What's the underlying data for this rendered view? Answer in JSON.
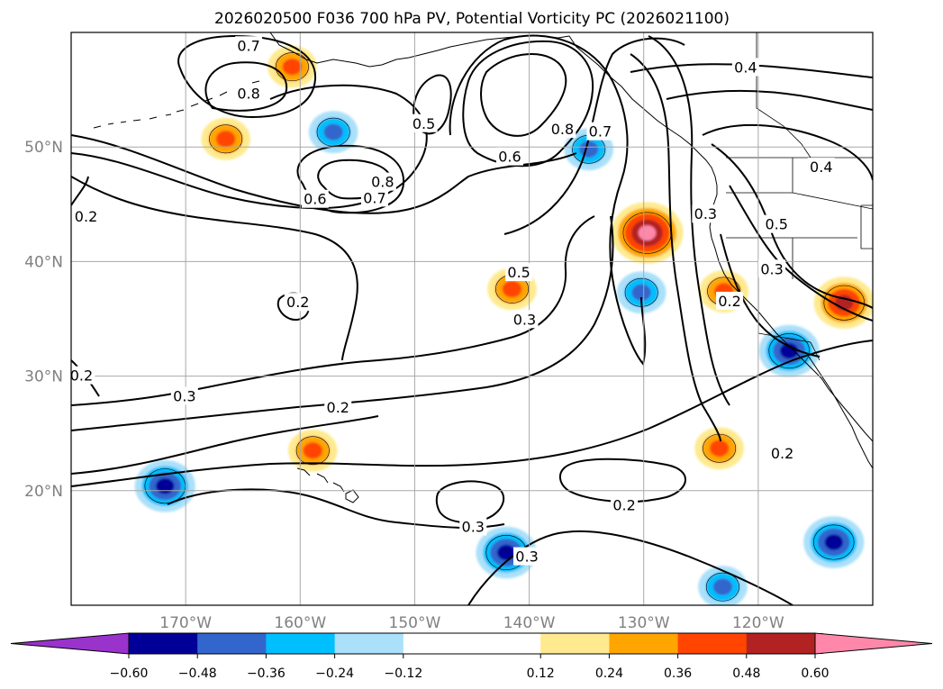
{
  "chart_data": {
    "type": "contour-map",
    "title": "2026020500 F036 700 hPa PV, Potential Vorticity PC (2026021100)",
    "xlabel": "",
    "ylabel": "",
    "xlim": [
      -180,
      -110
    ],
    "ylim": [
      10,
      60
    ],
    "lon_ticks": [
      -170,
      -160,
      -150,
      -140,
      -130,
      -120
    ],
    "lon_tick_labels": [
      "170°W",
      "160°W",
      "150°W",
      "140°W",
      "130°W",
      "120°W"
    ],
    "lat_ticks": [
      20,
      30,
      40,
      50
    ],
    "lat_tick_labels": [
      "20°N",
      "30°N",
      "40°N",
      "50°N"
    ],
    "colorbar": {
      "orientation": "horizontal",
      "extend": "both",
      "tick_values": [
        -0.6,
        -0.48,
        -0.36,
        -0.24,
        -0.12,
        0.12,
        0.24,
        0.36,
        0.48,
        0.6
      ],
      "tick_labels": [
        "−0.60",
        "−0.48",
        "−0.36",
        "−0.24",
        "−0.12",
        "0.12",
        "0.24",
        "0.36",
        "0.48",
        "0.60"
      ],
      "bins": [
        {
          "range": "< -0.60",
          "color": "#9933cc"
        },
        {
          "range": "-0.60 to -0.48",
          "color": "#000099"
        },
        {
          "range": "-0.48 to -0.36",
          "color": "#3366cc"
        },
        {
          "range": "-0.36 to -0.24",
          "color": "#00bfff"
        },
        {
          "range": "-0.24 to -0.12",
          "color": "#aae0fa"
        },
        {
          "range": "-0.12 to 0.12",
          "color": "#ffffff"
        },
        {
          "range": "0.12 to 0.24",
          "color": "#ffea8f"
        },
        {
          "range": "0.24 to 0.36",
          "color": "#ffa500"
        },
        {
          "range": "0.36 to 0.48",
          "color": "#ff4500"
        },
        {
          "range": "0.48 to 0.60",
          "color": "#b22222"
        },
        {
          "range": "> 0.60",
          "color": "#ff88aa"
        }
      ]
    },
    "contour_labels": [
      {
        "text": "0.7",
        "lon": -164.5,
        "lat": 58.8
      },
      {
        "text": "0.8",
        "lon": -164.5,
        "lat": 54.6
      },
      {
        "text": "0.5",
        "lon": -149.2,
        "lat": 52.0
      },
      {
        "text": "0.8",
        "lon": -137.1,
        "lat": 51.5
      },
      {
        "text": "0.7",
        "lon": -133.8,
        "lat": 51.3
      },
      {
        "text": "0.6",
        "lon": -141.7,
        "lat": 49.1
      },
      {
        "text": "0.8",
        "lon": -152.8,
        "lat": 46.9
      },
      {
        "text": "0.6",
        "lon": -158.7,
        "lat": 45.4
      },
      {
        "text": "0.7",
        "lon": -153.5,
        "lat": 45.5
      },
      {
        "text": "0.4",
        "lon": -121.1,
        "lat": 56.9
      },
      {
        "text": "0.4",
        "lon": -114.5,
        "lat": 48.2
      },
      {
        "text": "0.2",
        "lon": -178.7,
        "lat": 43.9
      },
      {
        "text": "0.5",
        "lon": -118.4,
        "lat": 43.2
      },
      {
        "text": "0.3",
        "lon": -124.6,
        "lat": 44.1
      },
      {
        "text": "0.5",
        "lon": -140.9,
        "lat": 39.0
      },
      {
        "text": "0.3",
        "lon": -118.8,
        "lat": 39.3
      },
      {
        "text": "0.2",
        "lon": -122.5,
        "lat": 36.5
      },
      {
        "text": "0.2",
        "lon": -160.2,
        "lat": 36.4
      },
      {
        "text": "0.3",
        "lon": -140.4,
        "lat": 34.9
      },
      {
        "text": "0.2",
        "lon": -179.1,
        "lat": 30.0
      },
      {
        "text": "0.3",
        "lon": -170.1,
        "lat": 28.2
      },
      {
        "text": "0.2",
        "lon": -156.7,
        "lat": 27.2
      },
      {
        "text": "0.2",
        "lon": -117.9,
        "lat": 23.2
      },
      {
        "text": "0.2",
        "lon": -131.7,
        "lat": 18.7
      },
      {
        "text": "0.3",
        "lon": -144.9,
        "lat": 16.8
      },
      {
        "text": "0.3",
        "lon": -140.2,
        "lat": 14.2
      }
    ],
    "anomaly_features": [
      {
        "sign": "positive",
        "peak_value": 0.5,
        "lon": -129.7,
        "lat": 42.5
      },
      {
        "sign": "positive",
        "peak_value": 0.45,
        "lon": -112.5,
        "lat": 36.4
      },
      {
        "sign": "positive",
        "peak_value": 0.3,
        "lon": -141.5,
        "lat": 37.6
      },
      {
        "sign": "positive",
        "peak_value": 0.3,
        "lon": -158.9,
        "lat": 23.5
      },
      {
        "sign": "positive",
        "peak_value": 0.3,
        "lon": -160.7,
        "lat": 57.0
      },
      {
        "sign": "positive",
        "peak_value": 0.28,
        "lon": -166.5,
        "lat": 50.7
      },
      {
        "sign": "positive",
        "peak_value": 0.28,
        "lon": -123.4,
        "lat": 23.7
      },
      {
        "sign": "positive",
        "peak_value": 0.25,
        "lon": -123.0,
        "lat": 37.4
      },
      {
        "sign": "negative",
        "peak_value": -0.45,
        "lon": -171.8,
        "lat": 20.4
      },
      {
        "sign": "negative",
        "peak_value": -0.42,
        "lon": -113.4,
        "lat": 15.5
      },
      {
        "sign": "negative",
        "peak_value": -0.4,
        "lon": -117.3,
        "lat": 32.2
      },
      {
        "sign": "negative",
        "peak_value": -0.38,
        "lon": -142.0,
        "lat": 14.6
      },
      {
        "sign": "negative",
        "peak_value": -0.3,
        "lon": -123.1,
        "lat": 11.6
      },
      {
        "sign": "negative",
        "peak_value": -0.3,
        "lon": -134.8,
        "lat": 49.8
      },
      {
        "sign": "negative",
        "peak_value": -0.3,
        "lon": -130.2,
        "lat": 37.3
      },
      {
        "sign": "negative",
        "peak_value": -0.3,
        "lon": -157.1,
        "lat": 51.3
      }
    ]
  }
}
